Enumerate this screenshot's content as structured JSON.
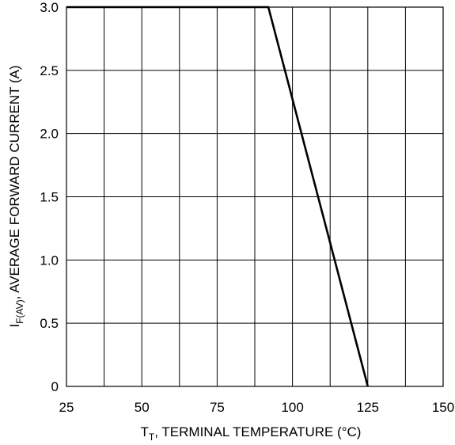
{
  "chart_data": {
    "type": "line",
    "title": "",
    "xlabel": {
      "main": "T",
      "sub": "T",
      "rest": ", TERMINAL TEMPERATURE (°C)"
    },
    "ylabel": {
      "main": "I",
      "sub": "F(AV)",
      "rest": ", AVERAGE FORWARD CURRENT (A)"
    },
    "xlim": [
      25,
      150
    ],
    "ylim": [
      0,
      3.0
    ],
    "x_ticks": [
      "25",
      "50",
      "75",
      "100",
      "125",
      "150"
    ],
    "y_ticks": [
      "0",
      "0.5",
      "1.0",
      "1.5",
      "2.0",
      "2.5",
      "3.0"
    ],
    "x_grid": [
      37.5,
      50,
      62.5,
      75,
      87.5,
      100,
      112.5,
      125,
      137.5
    ],
    "y_grid": [
      0.5,
      1.0,
      1.5,
      2.0,
      2.5,
      3.0
    ],
    "grid": true,
    "legend": "none",
    "series": [
      {
        "x": [
          25,
          92,
          125
        ],
        "y": [
          3.0,
          3.0,
          0
        ]
      }
    ]
  }
}
